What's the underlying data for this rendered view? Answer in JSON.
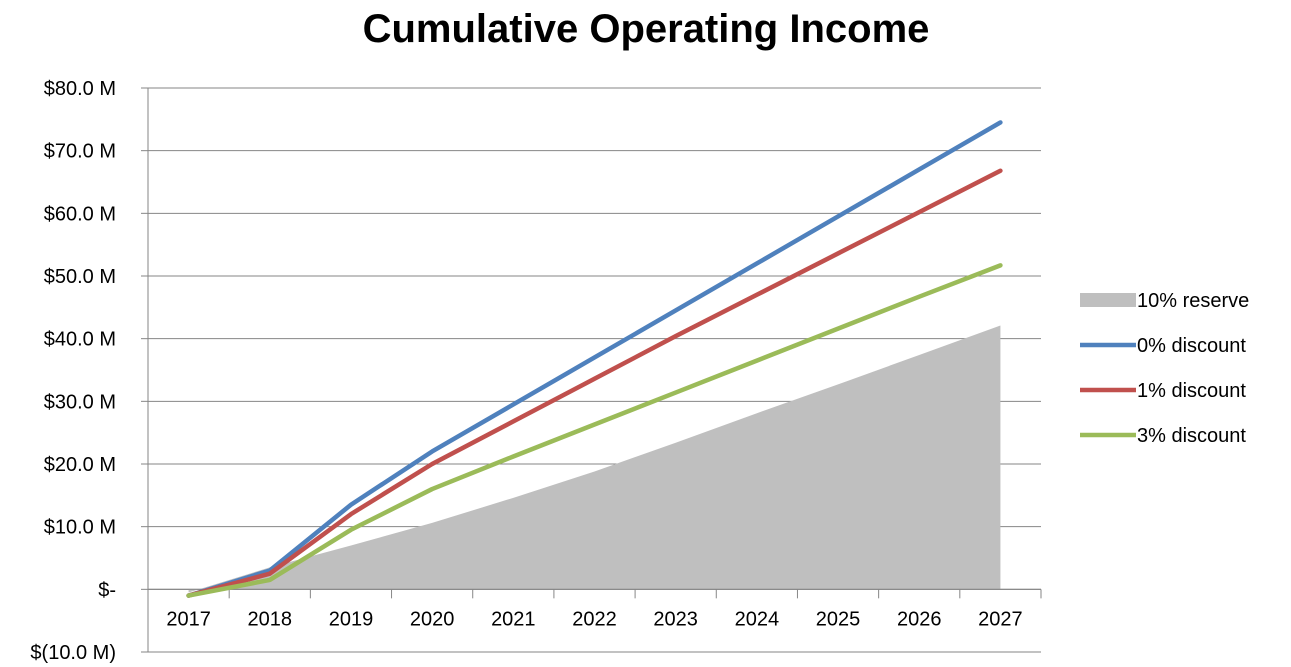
{
  "chart_data": {
    "type": "line",
    "title": "Cumulative Operating Income",
    "xlabel": "",
    "ylabel": "",
    "categories": [
      "2017",
      "2018",
      "2019",
      "2020",
      "2021",
      "2022",
      "2023",
      "2024",
      "2025",
      "2026",
      "2027"
    ],
    "ylim": [
      -10,
      80
    ],
    "y_ticks": [
      80,
      70,
      60,
      50,
      40,
      30,
      20,
      10,
      0,
      -10
    ],
    "y_tick_labels": [
      "$80.0 M",
      "$70.0 M",
      "$60.0 M",
      "$50.0 M",
      "$40.0 M",
      "$30.0 M",
      "$20.0 M",
      "$10.0 M",
      "$-",
      "$(10.0 M)"
    ],
    "grid": true,
    "legend_position": "right",
    "series": [
      {
        "name": "10% reserve",
        "type": "area",
        "color": "#bfbfbf",
        "values": [
          -0.5,
          3.5,
          7.0,
          10.6,
          14.6,
          18.8,
          23.4,
          28.1,
          32.7,
          37.4,
          42.1
        ]
      },
      {
        "name": "0% discount",
        "type": "line",
        "color": "#4f81bd",
        "values": [
          -1.0,
          3.0,
          13.5,
          22.0,
          29.5,
          37.0,
          44.5,
          52.0,
          59.5,
          67.0,
          74.5
        ]
      },
      {
        "name": "1% discount",
        "type": "line",
        "color": "#c0504d",
        "values": [
          -1.0,
          2.5,
          12.0,
          20.0,
          26.8,
          33.6,
          40.4,
          47.0,
          53.6,
          60.2,
          66.8
        ]
      },
      {
        "name": "3% discount",
        "type": "line",
        "color": "#9bbb59",
        "values": [
          -1.0,
          1.5,
          9.5,
          16.0,
          21.2,
          26.3,
          31.4,
          36.5,
          41.6,
          46.7,
          51.7
        ]
      }
    ]
  }
}
